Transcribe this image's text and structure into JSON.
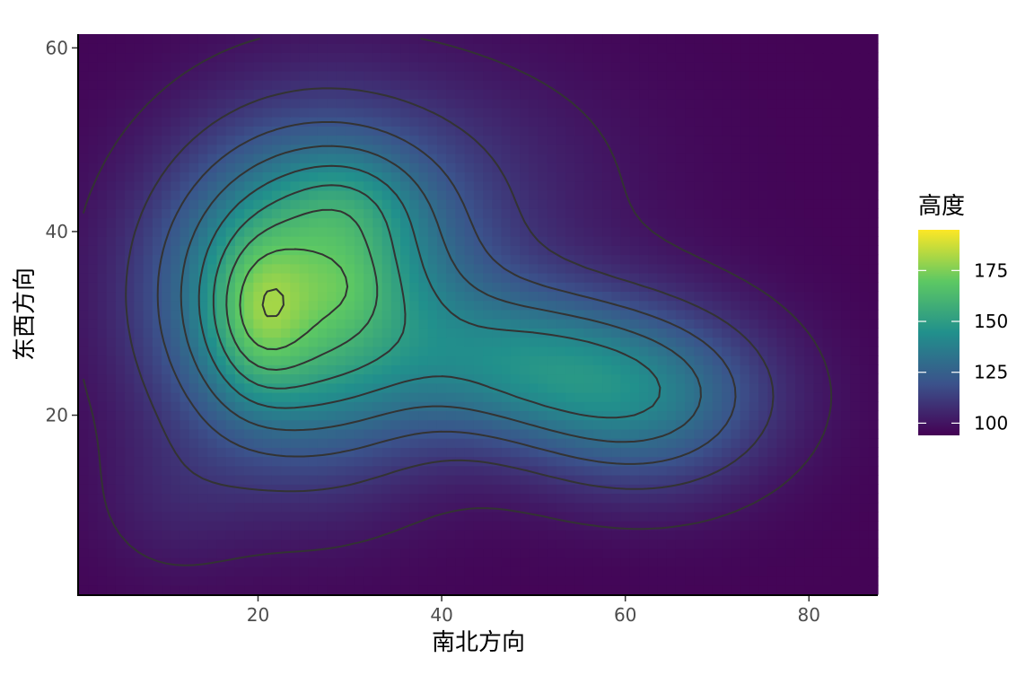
{
  "chart_data": {
    "type": "heatmap",
    "subtype": "filled contour / raster with contour lines",
    "title": "",
    "xlabel": "南北方向",
    "ylabel": "东西方向",
    "xlim": [
      0.5,
      87.5
    ],
    "ylim": [
      0.5,
      61.5
    ],
    "x_ticks": [
      20,
      40,
      60,
      80
    ],
    "y_ticks": [
      20,
      40,
      60
    ],
    "grid": false,
    "colormap": "viridis",
    "color_range": [
      94,
      195
    ],
    "colors": [
      "#440154",
      "#3b528b",
      "#21908c",
      "#5dc863",
      "#fde725"
    ],
    "contour_line_color": "#333333",
    "contour_levels": [
      100,
      110,
      120,
      130,
      140,
      150,
      160,
      170,
      180,
      190
    ],
    "peaks": [
      {
        "x": 20,
        "y": 32,
        "height": 195
      },
      {
        "x": 29,
        "y": 43,
        "height": 182
      },
      {
        "x": 30,
        "y": 34,
        "height": 178
      },
      {
        "x": 39,
        "y": 28,
        "height": 160
      },
      {
        "x": 49,
        "y": 26,
        "height": 162
      }
    ],
    "legend": {
      "title": "高度",
      "position": "right",
      "ticks": [
        100,
        125,
        150,
        175
      ]
    }
  }
}
